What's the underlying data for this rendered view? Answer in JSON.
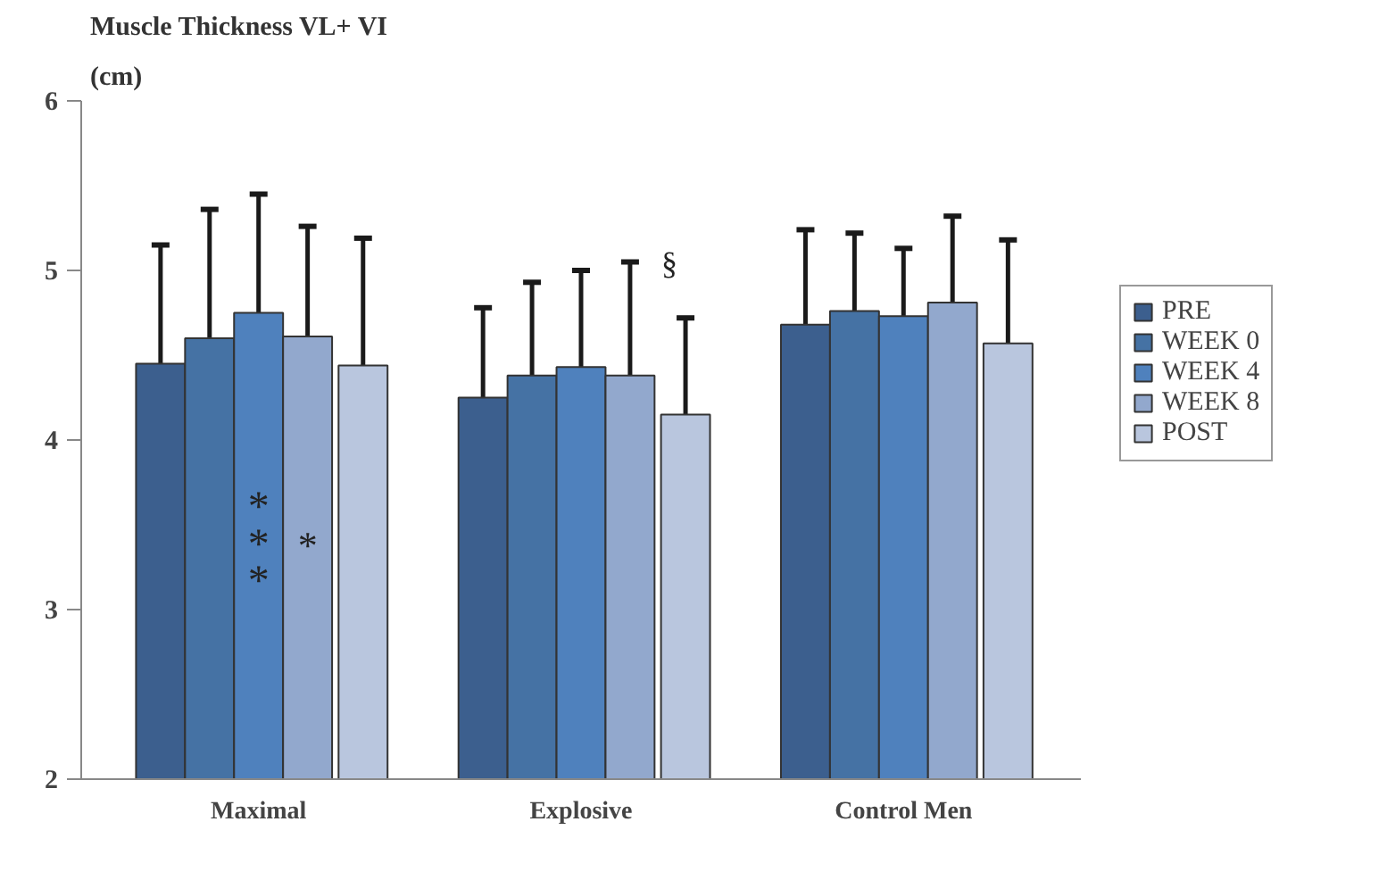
{
  "chart_data": {
    "type": "bar",
    "title": "Muscle Thickness VL+ VI",
    "ylabel": "(cm)",
    "categories": [
      "Maximal",
      "Explosive",
      "Control Men"
    ],
    "series": [
      {
        "name": "PRE",
        "color": "#3c5f8e",
        "values": [
          4.45,
          4.25,
          4.68
        ],
        "errors": [
          [
            4.45,
            5.15
          ],
          [
            4.25,
            4.78
          ],
          [
            4.68,
            5.24
          ]
        ]
      },
      {
        "name": "WEEK 0",
        "color": "#4572a4",
        "values": [
          4.6,
          4.38,
          4.76
        ],
        "errors": [
          [
            4.6,
            5.36
          ],
          [
            4.38,
            4.93
          ],
          [
            4.76,
            5.22
          ]
        ]
      },
      {
        "name": "WEEK 4",
        "color": "#4f81bd",
        "values": [
          4.75,
          4.43,
          4.73
        ],
        "errors": [
          [
            4.75,
            5.45
          ],
          [
            4.43,
            5.0
          ],
          [
            4.73,
            5.13
          ]
        ]
      },
      {
        "name": "WEEK 8",
        "color": "#92a8cd",
        "values": [
          4.61,
          4.38,
          4.81
        ],
        "errors": [
          [
            4.61,
            5.26
          ],
          [
            4.38,
            5.05
          ],
          [
            4.81,
            5.32
          ]
        ]
      },
      {
        "name": "POST",
        "color": "#b9c6de",
        "values": [
          4.44,
          4.15,
          4.57
        ],
        "errors": [
          [
            4.44,
            5.19
          ],
          [
            4.15,
            4.72
          ],
          [
            4.57,
            5.18
          ]
        ]
      }
    ],
    "annotations": [
      "***",
      "*",
      "§"
    ],
    "ylim": [
      2,
      6
    ],
    "yticks": [
      2,
      3,
      4,
      5,
      6
    ],
    "grid": false,
    "legend": "right"
  }
}
